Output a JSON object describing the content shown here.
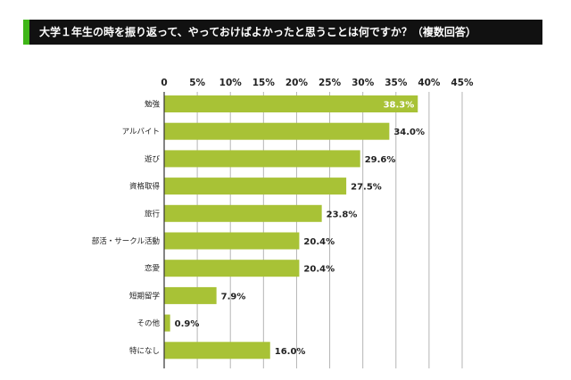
{
  "title": "大学１年生の時を振り返って、やっておけばよかったと思うことは何ですか？（複数回答）",
  "colors": {
    "bar": "#a8c236",
    "title_bg": "#111111",
    "title_accent": "#3fb618",
    "grid": "#b5b5b5"
  },
  "chart_data": {
    "type": "bar",
    "orientation": "horizontal",
    "title": "大学１年生の時を振り返って、やっておけばよかったと思うことは何ですか？（複数回答）",
    "categories": [
      "勉強",
      "アルバイト",
      "遊び",
      "資格取得",
      "旅行",
      "部活・サークル活動",
      "恋愛",
      "短期留学",
      "その他",
      "特になし"
    ],
    "values": [
      38.3,
      34.0,
      29.6,
      27.5,
      23.8,
      20.4,
      20.4,
      7.9,
      0.9,
      16.0
    ],
    "value_labels": [
      "38.3%",
      "34.0%",
      "29.6%",
      "27.5%",
      "23.8%",
      "20.4%",
      "20.4%",
      "7.9%",
      "0.9%",
      "16.0%"
    ],
    "xlim": [
      0,
      45
    ],
    "x_ticks": [
      0,
      5,
      10,
      15,
      20,
      25,
      30,
      35,
      40,
      45
    ],
    "x_tick_labels": [
      "0",
      "5%",
      "10%",
      "15%",
      "20%",
      "25%",
      "30%",
      "35%",
      "40%",
      "45%"
    ],
    "x_axis_position": "top",
    "grid": true
  }
}
